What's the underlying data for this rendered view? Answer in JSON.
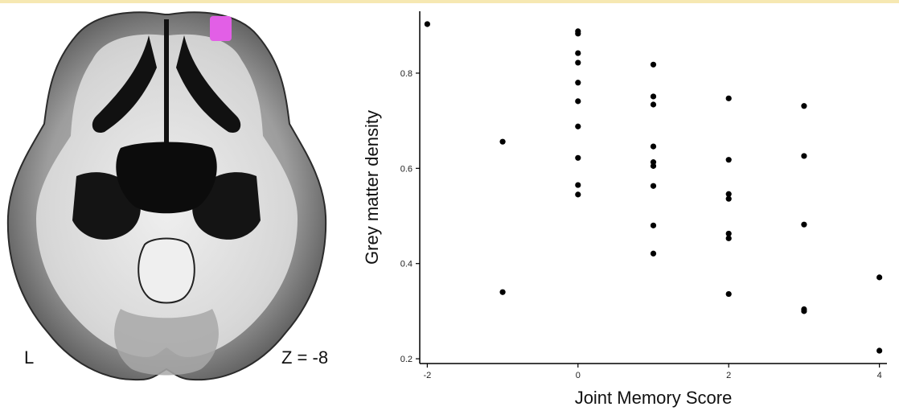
{
  "figure": {
    "brain": {
      "hemisphere_label": "L",
      "slice_label": "Z = -8",
      "highlight_color": "#e25fe6",
      "highlight_region": "left-frontal-pole-cluster"
    },
    "colors": {
      "points": "#000000",
      "axes": "#000000",
      "background": "#ffffff"
    }
  },
  "chart_data": {
    "type": "scatter",
    "title": "",
    "xlabel": "Joint Memory Score",
    "ylabel": "Grey matter density",
    "xlim": [
      -2.1,
      4.1
    ],
    "ylim": [
      0.19,
      0.93
    ],
    "xticks": [
      -2,
      0,
      2,
      4
    ],
    "yticks": [
      0.2,
      0.4,
      0.6,
      0.8
    ],
    "xtick_labels": [
      "-2",
      "0",
      "2",
      "4"
    ],
    "ytick_labels": [
      "0.2",
      "0.4",
      "0.6",
      "0.8"
    ],
    "grid": false,
    "points": [
      {
        "x": -2,
        "y": 0.903
      },
      {
        "x": -1,
        "y": 0.656
      },
      {
        "x": -1,
        "y": 0.34
      },
      {
        "x": 0,
        "y": 0.888
      },
      {
        "x": 0,
        "y": 0.883
      },
      {
        "x": 0,
        "y": 0.842
      },
      {
        "x": 0,
        "y": 0.822
      },
      {
        "x": 0,
        "y": 0.78
      },
      {
        "x": 0,
        "y": 0.741
      },
      {
        "x": 0,
        "y": 0.688
      },
      {
        "x": 0,
        "y": 0.622
      },
      {
        "x": 0,
        "y": 0.565
      },
      {
        "x": 0,
        "y": 0.545
      },
      {
        "x": 1,
        "y": 0.818
      },
      {
        "x": 1,
        "y": 0.751
      },
      {
        "x": 1,
        "y": 0.734
      },
      {
        "x": 1,
        "y": 0.646
      },
      {
        "x": 1,
        "y": 0.613
      },
      {
        "x": 1,
        "y": 0.605
      },
      {
        "x": 1,
        "y": 0.563
      },
      {
        "x": 1,
        "y": 0.48
      },
      {
        "x": 1,
        "y": 0.421
      },
      {
        "x": 2,
        "y": 0.747
      },
      {
        "x": 2,
        "y": 0.618
      },
      {
        "x": 2,
        "y": 0.546
      },
      {
        "x": 2,
        "y": 0.536
      },
      {
        "x": 2,
        "y": 0.463
      },
      {
        "x": 2,
        "y": 0.453
      },
      {
        "x": 2,
        "y": 0.336
      },
      {
        "x": 3,
        "y": 0.731
      },
      {
        "x": 3,
        "y": 0.626
      },
      {
        "x": 3,
        "y": 0.482
      },
      {
        "x": 3,
        "y": 0.304
      },
      {
        "x": 3,
        "y": 0.3
      },
      {
        "x": 4,
        "y": 0.371
      },
      {
        "x": 4,
        "y": 0.217
      }
    ]
  }
}
